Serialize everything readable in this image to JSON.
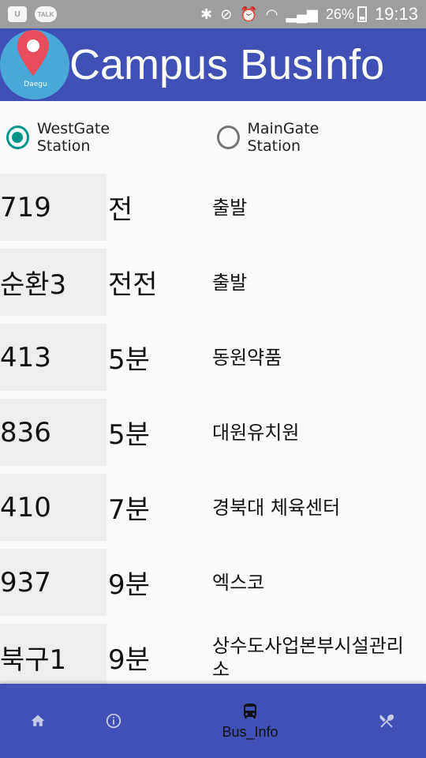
{
  "status_bar": {
    "battery": "26%",
    "time": "19:13",
    "talk_badge": "TALK"
  },
  "app_bar": {
    "title": "Campus BusInfo",
    "logo_text": "Daegu"
  },
  "stations": {
    "options": [
      {
        "label": "WestGate Station",
        "selected": true
      },
      {
        "label": "MainGate Station",
        "selected": false
      }
    ]
  },
  "buses": [
    {
      "number": "719",
      "arrival": "전",
      "location": "출발"
    },
    {
      "number": "순환3",
      "arrival": "전전",
      "location": "출발"
    },
    {
      "number": "413",
      "arrival": "5분",
      "location": "동원약품"
    },
    {
      "number": "836",
      "arrival": "5분",
      "location": "대원유치원"
    },
    {
      "number": "410",
      "arrival": "7분",
      "location": "경북대 체육센터"
    },
    {
      "number": "937",
      "arrival": "9분",
      "location": "엑스코"
    },
    {
      "number": "북구1",
      "arrival": "9분",
      "location": "상수도사업본부시설관리소"
    }
  ],
  "bottom_nav": {
    "items": [
      {
        "icon": "home-icon",
        "label": ""
      },
      {
        "icon": "info-icon",
        "label": ""
      },
      {
        "icon": "bus-icon",
        "label": "Bus_Info"
      },
      {
        "icon": "restaurant-icon",
        "label": ""
      }
    ]
  },
  "colors": {
    "primary": "#3f51b5",
    "accent": "#009688",
    "status_bar": "#9e9e9e"
  }
}
